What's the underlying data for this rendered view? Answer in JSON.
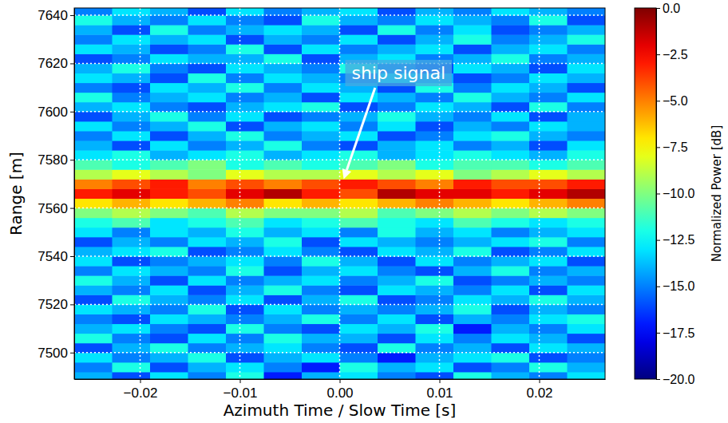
{
  "chart_data": {
    "type": "heatmap",
    "x_label": "Azimuth Time / Slow Time [s]",
    "y_label": "Range [m]",
    "xlim": [
      -0.0266,
      0.0266
    ],
    "ylim": [
      7489,
      7643
    ],
    "xticks": [
      {
        "value": -0.02,
        "label": "−0.02"
      },
      {
        "value": -0.01,
        "label": "−0.01"
      },
      {
        "value": 0,
        "label": "0.00"
      },
      {
        "value": 0.01,
        "label": "0.01"
      },
      {
        "value": 0.02,
        "label": "0.02"
      }
    ],
    "yticks": [
      7500,
      7520,
      7540,
      7560,
      7580,
      7600,
      7620,
      7640
    ],
    "grid": true,
    "x_edges": [
      -0.0266,
      -0.0228,
      -0.019,
      -0.0152,
      -0.0114,
      -0.0076,
      -0.0038,
      0,
      0.0038,
      0.0076,
      0.0114,
      0.0152,
      0.019,
      0.0228,
      0.0266
    ],
    "y_edges": [
      7488,
      7492,
      7496,
      7500,
      7504,
      7508,
      7512,
      7516,
      7520,
      7524,
      7528,
      7532,
      7536,
      7540,
      7544,
      7548,
      7552,
      7556,
      7560,
      7564,
      7568,
      7572,
      7576,
      7580,
      7584,
      7588,
      7592,
      7596,
      7600,
      7604,
      7608,
      7612,
      7616,
      7620,
      7624,
      7628,
      7632,
      7636,
      7640,
      7644
    ],
    "cells": [
      [
        -14,
        -16,
        -13,
        -15,
        -12,
        -17,
        -14,
        -13,
        -15,
        -16,
        -12,
        -14,
        -15,
        -13
      ],
      [
        -15,
        -12,
        -16,
        -14,
        -13,
        -15,
        -17,
        -12,
        -14,
        -13,
        -16,
        -15,
        -12,
        -14
      ],
      [
        -13,
        -15,
        -14,
        -12,
        -16,
        -14,
        -13,
        -15,
        -17,
        -14,
        -13,
        -12,
        -16,
        -15
      ],
      [
        -16,
        -14,
        -12,
        -15,
        -14,
        -13,
        -15,
        -16,
        -12,
        -15,
        -14,
        -16,
        -13,
        -14
      ],
      [
        -12,
        -15,
        -16,
        -13,
        -15,
        -12,
        -14,
        -14,
        -16,
        -13,
        -15,
        -13,
        -14,
        -16
      ],
      [
        -14,
        -13,
        -15,
        -16,
        -12,
        -15,
        -16,
        -13,
        -14,
        -12,
        -17,
        -14,
        -15,
        -13
      ],
      [
        -15,
        -16,
        -13,
        -14,
        -15,
        -14,
        -12,
        -15,
        -13,
        -16,
        -14,
        -15,
        -13,
        -12
      ],
      [
        -13,
        -14,
        -15,
        -12,
        -16,
        -13,
        -15,
        -14,
        -15,
        -14,
        -12,
        -16,
        -14,
        -15
      ],
      [
        -16,
        -12,
        -14,
        -15,
        -13,
        -16,
        -14,
        -12,
        -16,
        -15,
        -13,
        -14,
        -12,
        -14
      ],
      [
        -14,
        -15,
        -13,
        -16,
        -14,
        -12,
        -15,
        -16,
        -13,
        -14,
        -15,
        -13,
        -16,
        -13
      ],
      [
        -12,
        -14,
        -16,
        -13,
        -15,
        -14,
        -13,
        -15,
        -14,
        -12,
        -16,
        -15,
        -14,
        -15
      ],
      [
        -15,
        -13,
        -14,
        -15,
        -12,
        -16,
        -14,
        -13,
        -15,
        -16,
        -14,
        -12,
        -15,
        -14
      ],
      [
        -13,
        -16,
        -15,
        -14,
        -13,
        -15,
        -12,
        -14,
        -16,
        -13,
        -15,
        -14,
        -13,
        -16
      ],
      [
        -14,
        -13,
        -12,
        -16,
        -15,
        -13,
        -15,
        -16,
        -13,
        -14,
        -12,
        -16,
        -15,
        -13
      ],
      [
        -16,
        -14,
        -15,
        -13,
        -14,
        -12,
        -16,
        -13,
        -14,
        -15,
        -14,
        -13,
        -12,
        -15
      ],
      [
        -13,
        -15,
        -13,
        -14,
        -12,
        -14,
        -13,
        -15,
        -12,
        -14,
        -13,
        -15,
        -14,
        -13
      ],
      [
        -12,
        -11,
        -13,
        -12,
        -11,
        -13,
        -12,
        -11,
        -12,
        -13,
        -11,
        -12,
        -13,
        -12
      ],
      [
        -10,
        -9,
        -10,
        -11,
        -9,
        -10,
        -10,
        -9,
        -11,
        -10,
        -9,
        -10,
        -9,
        -10
      ],
      [
        -7,
        -6,
        -7,
        -6,
        -5,
        -7,
        -6,
        -7,
        -6,
        -5,
        -6,
        -7,
        -6,
        -5
      ],
      [
        -3,
        -2,
        -3,
        -4,
        -2,
        -1,
        -3,
        -4,
        -1,
        -2,
        -2,
        -3,
        -2,
        -1
      ],
      [
        -5,
        -4,
        -3,
        -5,
        -4,
        -5,
        -4,
        -3,
        -4,
        -5,
        -3,
        -4,
        -4,
        -3
      ],
      [
        -9,
        -8,
        -9,
        -10,
        -8,
        -9,
        -9,
        -8,
        -9,
        -8,
        -10,
        -9,
        -8,
        -9
      ],
      [
        -11,
        -12,
        -11,
        -10,
        -12,
        -11,
        -12,
        -11,
        -10,
        -12,
        -11,
        -11,
        -12,
        -11
      ],
      [
        -13,
        -12,
        -14,
        -13,
        -12,
        -14,
        -13,
        -12,
        -14,
        -13,
        -12,
        -13,
        -14,
        -12
      ],
      [
        -14,
        -16,
        -13,
        -15,
        -14,
        -12,
        -15,
        -16,
        -14,
        -13,
        -15,
        -14,
        -16,
        -13
      ],
      [
        -15,
        -13,
        -16,
        -14,
        -12,
        -15,
        -14,
        -13,
        -16,
        -15,
        -13,
        -12,
        -14,
        -15
      ],
      [
        -13,
        -15,
        -14,
        -12,
        -16,
        -14,
        -13,
        -15,
        -13,
        -16,
        -14,
        -15,
        -13,
        -14
      ],
      [
        -16,
        -14,
        -12,
        -15,
        -13,
        -16,
        -15,
        -14,
        -12,
        -14,
        -15,
        -13,
        -16,
        -14
      ],
      [
        -14,
        -13,
        -15,
        -16,
        -14,
        -13,
        -12,
        -16,
        -15,
        -13,
        -14,
        -16,
        -12,
        -15
      ],
      [
        -12,
        -15,
        -14,
        -13,
        -15,
        -14,
        -16,
        -13,
        -14,
        -15,
        -12,
        -14,
        -15,
        -13
      ],
      [
        -15,
        -16,
        -13,
        -14,
        -12,
        -15,
        -13,
        -14,
        -16,
        -12,
        -15,
        -13,
        -14,
        -16
      ],
      [
        -13,
        -14,
        -16,
        -12,
        -15,
        -13,
        -14,
        -15,
        -13,
        -14,
        -16,
        -15,
        -13,
        -14
      ],
      [
        -14,
        -12,
        -15,
        -16,
        -13,
        -14,
        -15,
        -12,
        -15,
        -16,
        -13,
        -14,
        -16,
        -13
      ],
      [
        -16,
        -15,
        -13,
        -14,
        -14,
        -12,
        -16,
        -14,
        -13,
        -15,
        -14,
        -12,
        -15,
        -14
      ],
      [
        -13,
        -14,
        -16,
        -15,
        -12,
        -16,
        -13,
        -15,
        -14,
        -13,
        -16,
        -14,
        -13,
        -15
      ],
      [
        -15,
        -13,
        -14,
        -13,
        -16,
        -14,
        -15,
        -13,
        -16,
        -14,
        -12,
        -15,
        -14,
        -12
      ],
      [
        -14,
        -16,
        -12,
        -15,
        -14,
        -13,
        -14,
        -16,
        -12,
        -15,
        -13,
        -16,
        -15,
        -14
      ],
      [
        -12,
        -14,
        -15,
        -13,
        -15,
        -16,
        -12,
        -14,
        -15,
        -13,
        -14,
        -15,
        -12,
        -16
      ],
      [
        -15,
        -13,
        -14,
        -16,
        -13,
        -15,
        -14,
        -13,
        -16,
        -14,
        -15,
        -13,
        -14,
        -15
      ]
    ],
    "colorbar": {
      "label": "Normalized Power [dB]",
      "lim": [
        -20,
        0
      ],
      "ticks": [
        {
          "value": 0,
          "label": "0.0"
        },
        {
          "value": -2.5,
          "label": "−2.5"
        },
        {
          "value": -5,
          "label": "−5.0"
        },
        {
          "value": -7.5,
          "label": "−7.5"
        },
        {
          "value": -10,
          "label": "−10.0"
        },
        {
          "value": -12.5,
          "label": "−12.5"
        },
        {
          "value": -15,
          "label": "−15.0"
        },
        {
          "value": -17.5,
          "label": "−17.5"
        },
        {
          "value": -20,
          "label": "−20.0"
        }
      ]
    },
    "annotations": [
      {
        "text": "ship signal",
        "xy": [
          0.0004,
          7572
        ],
        "xytext": [
          0.0059,
          7616
        ]
      }
    ]
  }
}
